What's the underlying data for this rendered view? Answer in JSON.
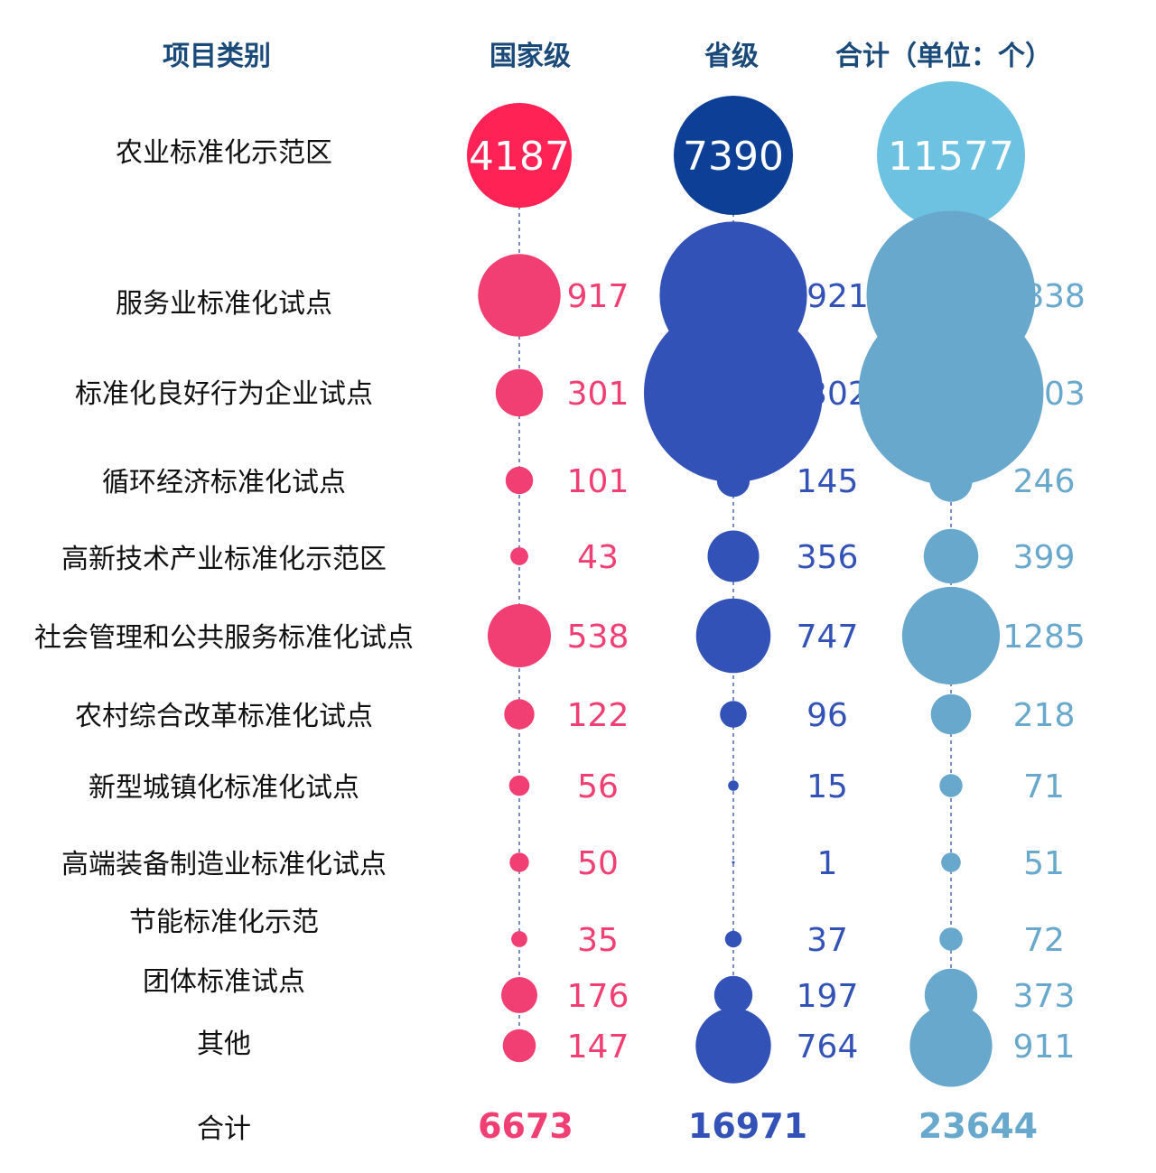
{
  "header": {
    "category": "项目类别",
    "national": "国家级",
    "provincial": "省级",
    "total": "合计（单位：个）"
  },
  "colors": {
    "national": "#f23f73",
    "national_big": "#ff2255",
    "provincial": "#3352b8",
    "provincial_big": "#0e3f96",
    "total": "#67a8cc",
    "total_big": "#6cc2e0",
    "header": "#1a4a7a",
    "guide": "#3355a6"
  },
  "chart_data": {
    "type": "table",
    "columns": [
      "国家级",
      "省级",
      "合计（单位：个）"
    ],
    "rows": [
      {
        "category": "农业标准化示范区",
        "national": 4187,
        "provincial": 7390,
        "total": 11577
      },
      {
        "category": "服务业标准化试点",
        "national": 917,
        "provincial": 2921,
        "total": 3838
      },
      {
        "category": "标准化良好行为企业试点",
        "national": 301,
        "provincial": 4302,
        "total": 4603
      },
      {
        "category": "循环经济标准化试点",
        "national": 101,
        "provincial": 145,
        "total": 246
      },
      {
        "category": "高新技术产业标准化示范区",
        "national": 43,
        "provincial": 356,
        "total": 399
      },
      {
        "category": "社会管理和公共服务标准化试点",
        "national": 538,
        "provincial": 747,
        "total": 1285
      },
      {
        "category": "农村综合改革标准化试点",
        "national": 122,
        "provincial": 96,
        "total": 218
      },
      {
        "category": "新型城镇化标准化试点",
        "national": 56,
        "provincial": 15,
        "total": 71
      },
      {
        "category": "高端装备制造业标准化试点",
        "national": 50,
        "provincial": 1,
        "total": 51
      },
      {
        "category": "节能标准化示范",
        "national": 35,
        "provincial": 37,
        "total": 72
      },
      {
        "category": "团体标准试点",
        "national": 176,
        "provincial": 197,
        "total": 373
      },
      {
        "category": "其他",
        "national": 147,
        "provincial": 764,
        "total": 911
      }
    ],
    "totals": {
      "category": "合计",
      "national": 6673,
      "provincial": 16971,
      "total": 23644
    }
  }
}
